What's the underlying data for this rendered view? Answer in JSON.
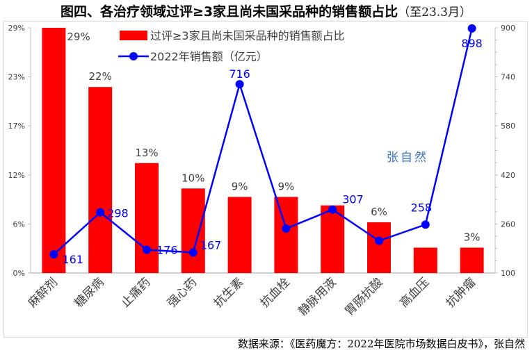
{
  "title": "图四、各治疗领域过评≥3家且尚未国采品种的销售额占比",
  "title_sub": "（至23.3月）",
  "source": "数据来源：《医药魔方：2022年医院市场数据白皮书》，张自然",
  "watermark": "张自然",
  "colors": {
    "bar": "#ff0000",
    "line": "#0000ff",
    "axis": "#bfbfbf",
    "text": "#404040"
  },
  "chart_data": {
    "type": "bar+line",
    "title": "图四、各治疗领域过评≥3家且尚未国采品种的销售额占比（至23.3月）",
    "categories": [
      "麻醉剂",
      "糖尿病",
      "止痛药",
      "强心药",
      "抗生素",
      "抗血栓",
      "静脉用液",
      "胃肠抗酸",
      "高血压",
      "抗肿瘤"
    ],
    "series": [
      {
        "name": "过评≥3家且尚未国采品种的销售额占比",
        "type": "bar",
        "axis": "left",
        "values": [
          29,
          22,
          13,
          10,
          9,
          9,
          8,
          6,
          3,
          3
        ],
        "labels": [
          "29%",
          "22%",
          "13%",
          "10%",
          "9%",
          "9%",
          "",
          "6%",
          "",
          "3%"
        ]
      },
      {
        "name": "2022年销售额（亿元）",
        "type": "line",
        "axis": "right",
        "values": [
          161,
          298,
          176,
          167,
          716,
          245,
          307,
          205,
          258,
          898
        ],
        "labels": [
          "161",
          "298",
          "176",
          "167",
          "716",
          "",
          "307",
          "",
          "258",
          "898"
        ]
      }
    ],
    "left_axis": {
      "ylim": [
        0,
        29
      ],
      "ticks": [
        "0%",
        "6%",
        "12%",
        "17%",
        "23%",
        "29%"
      ]
    },
    "right_axis": {
      "ylim": [
        100,
        900
      ],
      "ticks": [
        "100",
        "260",
        "420",
        "580",
        "740",
        "900"
      ]
    },
    "legend": "top-center"
  }
}
